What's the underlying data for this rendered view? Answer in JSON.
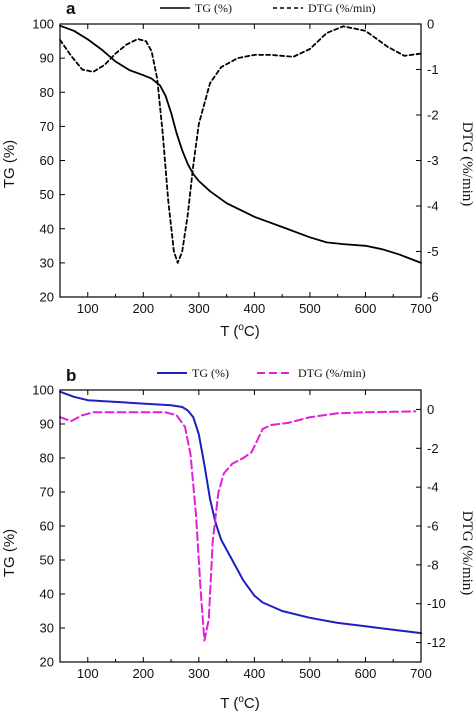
{
  "chart_data": [
    {
      "type": "line",
      "panel_label": "a",
      "xlabel": "T (",
      "xlabel_sup": "o",
      "xlabel_end": "C)",
      "ylabel": "TG (%)",
      "y2label": "DTG (%/min)",
      "xlim": [
        50,
        700
      ],
      "ylim": [
        20,
        100
      ],
      "y2lim": [
        -6,
        0
      ],
      "xticks": [
        100,
        200,
        300,
        400,
        500,
        600,
        700
      ],
      "yticks": [
        20,
        30,
        40,
        50,
        60,
        70,
        80,
        90,
        100
      ],
      "y2ticks": [
        0,
        -1,
        -2,
        -3,
        -4,
        -5,
        -6
      ],
      "legend_position": "top",
      "series": [
        {
          "name": "TG (%)",
          "axis": "left",
          "color": "#000000",
          "dash": "solid",
          "x": [
            50,
            75,
            100,
            125,
            150,
            175,
            200,
            215,
            230,
            240,
            250,
            260,
            270,
            280,
            290,
            300,
            320,
            350,
            400,
            450,
            500,
            530,
            560,
            600,
            630,
            660,
            700
          ],
          "y": [
            99.5,
            98,
            95.5,
            92.5,
            89,
            86.5,
            85,
            84,
            82,
            79,
            74,
            68,
            63,
            59,
            56,
            54,
            51,
            47.5,
            43.5,
            40.5,
            37.5,
            36,
            35.5,
            35,
            34,
            32.5,
            30
          ]
        },
        {
          "name": "DTG (%/min)",
          "axis": "right",
          "color": "#000000",
          "dash": "dashed",
          "x": [
            50,
            70,
            90,
            110,
            130,
            150,
            170,
            190,
            205,
            215,
            225,
            235,
            245,
            255,
            262,
            270,
            280,
            290,
            300,
            320,
            340,
            370,
            400,
            430,
            470,
            500,
            530,
            560,
            600,
            640,
            670,
            700
          ],
          "y": [
            -0.35,
            -0.7,
            -1.0,
            -1.05,
            -0.9,
            -0.65,
            -0.45,
            -0.33,
            -0.38,
            -0.6,
            -1.2,
            -2.4,
            -3.9,
            -5.0,
            -5.25,
            -5.0,
            -4.2,
            -3.1,
            -2.2,
            -1.3,
            -0.95,
            -0.75,
            -0.68,
            -0.68,
            -0.72,
            -0.55,
            -0.2,
            -0.05,
            -0.15,
            -0.5,
            -0.7,
            -0.65
          ]
        }
      ]
    },
    {
      "type": "line",
      "panel_label": "b",
      "xlabel": "T (",
      "xlabel_sup": "o",
      "xlabel_end": "C)",
      "ylabel": "TG (%)",
      "y2label": "DTG (%/min)",
      "xlim": [
        50,
        700
      ],
      "ylim": [
        20,
        100
      ],
      "y2lim": [
        -13,
        1
      ],
      "xticks": [
        100,
        200,
        300,
        400,
        500,
        600,
        700
      ],
      "yticks": [
        20,
        30,
        40,
        50,
        60,
        70,
        80,
        90,
        100
      ],
      "y2ticks": [
        0,
        -2,
        -4,
        -6,
        -8,
        -10,
        -12
      ],
      "legend_position": "top",
      "series": [
        {
          "name": "TG (%)",
          "axis": "left",
          "color": "#1f1fc0",
          "dash": "solid",
          "x": [
            50,
            75,
            100,
            150,
            200,
            250,
            270,
            280,
            290,
            300,
            310,
            320,
            330,
            340,
            360,
            380,
            400,
            415,
            450,
            500,
            550,
            600,
            650,
            700
          ],
          "y": [
            99.5,
            98,
            97,
            96.5,
            96,
            95.5,
            95,
            94,
            92,
            87,
            78,
            68,
            61,
            56,
            50,
            44,
            39.5,
            37.5,
            35,
            33,
            31.5,
            30.5,
            29.5,
            28.5
          ]
        },
        {
          "name": "DTG (%/min)",
          "axis": "right",
          "color": "#e020d8",
          "dash": "dashed",
          "x": [
            50,
            70,
            90,
            110,
            150,
            200,
            240,
            260,
            275,
            285,
            295,
            303,
            310,
            318,
            325,
            335,
            345,
            360,
            380,
            395,
            405,
            415,
            430,
            460,
            500,
            550,
            600,
            650,
            690
          ],
          "y": [
            -0.4,
            -0.6,
            -0.3,
            -0.15,
            -0.15,
            -0.15,
            -0.15,
            -0.3,
            -0.9,
            -2.3,
            -5.5,
            -9.2,
            -11.9,
            -10.8,
            -6.8,
            -4.3,
            -3.3,
            -2.8,
            -2.5,
            -2.2,
            -1.6,
            -1.0,
            -0.8,
            -0.7,
            -0.4,
            -0.2,
            -0.15,
            -0.12,
            -0.1
          ]
        }
      ]
    }
  ]
}
